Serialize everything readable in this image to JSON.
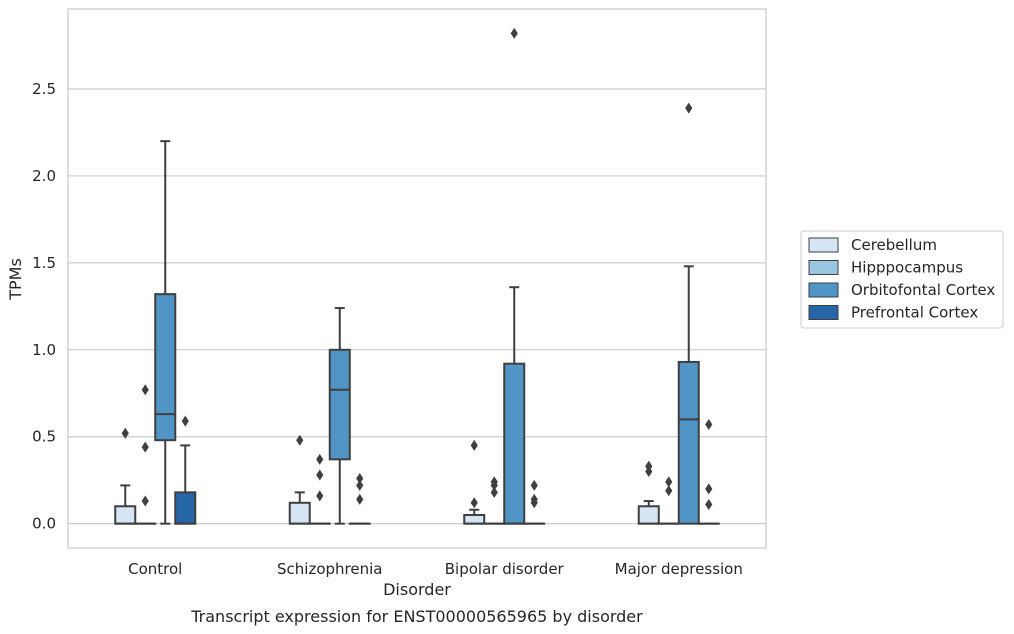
{
  "chart_data": {
    "type": "box",
    "caption": "Transcript expression for ENST00000565965 by disorder",
    "xlabel": "Disorder",
    "ylabel": "TPMs",
    "ylim": [
      -0.14,
      2.96
    ],
    "yticks": [
      "0.0",
      "0.5",
      "1.0",
      "1.5",
      "2.0",
      "2.5"
    ],
    "grid": "horizontal",
    "legend_position": "right",
    "categories": [
      "Control",
      "Schizophrenia",
      "Bipolar disorder",
      "Major depression"
    ],
    "series": [
      {
        "name": "Cerebellum",
        "color": "#d6e5f3",
        "boxes": [
          {
            "q1": 0.0,
            "median": 0.0,
            "q3": 0.1,
            "whisker_low": 0.0,
            "whisker_high": 0.22,
            "outliers": [
              0.52
            ]
          },
          {
            "q1": 0.0,
            "median": 0.0,
            "q3": 0.12,
            "whisker_low": 0.0,
            "whisker_high": 0.18,
            "outliers": [
              0.48
            ]
          },
          {
            "q1": 0.0,
            "median": 0.0,
            "q3": 0.05,
            "whisker_low": 0.0,
            "whisker_high": 0.08,
            "outliers": [
              0.12,
              0.45
            ]
          },
          {
            "q1": 0.0,
            "median": 0.0,
            "q3": 0.1,
            "whisker_low": 0.0,
            "whisker_high": 0.13,
            "outliers": [
              0.3,
              0.33
            ]
          }
        ]
      },
      {
        "name": "Hipppocampus",
        "color": "#9ac5e1",
        "boxes": [
          {
            "q1": 0.0,
            "median": 0.0,
            "q3": 0.0,
            "whisker_low": 0.0,
            "whisker_high": 0.0,
            "outliers": [
              0.13,
              0.44,
              0.77
            ]
          },
          {
            "q1": 0.0,
            "median": 0.0,
            "q3": 0.0,
            "whisker_low": 0.0,
            "whisker_high": 0.0,
            "outliers": [
              0.16,
              0.28,
              0.37
            ]
          },
          {
            "q1": 0.0,
            "median": 0.0,
            "q3": 0.0,
            "whisker_low": 0.0,
            "whisker_high": 0.0,
            "outliers": [
              0.18,
              0.22,
              0.24
            ]
          },
          {
            "q1": 0.0,
            "median": 0.0,
            "q3": 0.0,
            "whisker_low": 0.0,
            "whisker_high": 0.0,
            "outliers": [
              0.19,
              0.24
            ]
          }
        ]
      },
      {
        "name": "Orbitofontal Cortex",
        "color": "#5095c5",
        "boxes": [
          {
            "q1": 0.48,
            "median": 0.63,
            "q3": 1.32,
            "whisker_low": 0.0,
            "whisker_high": 2.2,
            "outliers": []
          },
          {
            "q1": 0.37,
            "median": 0.77,
            "q3": 1.0,
            "whisker_low": 0.0,
            "whisker_high": 1.24,
            "outliers": []
          },
          {
            "q1": 0.0,
            "median": 0.0,
            "q3": 0.92,
            "whisker_low": 0.0,
            "whisker_high": 1.36,
            "outliers": [
              2.82
            ]
          },
          {
            "q1": 0.0,
            "median": 0.6,
            "q3": 0.93,
            "whisker_low": 0.0,
            "whisker_high": 1.48,
            "outliers": [
              2.39
            ]
          }
        ]
      },
      {
        "name": "Prefrontal Cortex",
        "color": "#2666a6",
        "boxes": [
          {
            "q1": 0.0,
            "median": 0.0,
            "q3": 0.18,
            "whisker_low": 0.0,
            "whisker_high": 0.45,
            "outliers": [
              0.59
            ]
          },
          {
            "q1": 0.0,
            "median": 0.0,
            "q3": 0.0,
            "whisker_low": 0.0,
            "whisker_high": 0.0,
            "outliers": [
              0.14,
              0.22,
              0.26
            ]
          },
          {
            "q1": 0.0,
            "median": 0.0,
            "q3": 0.0,
            "whisker_low": 0.0,
            "whisker_high": 0.0,
            "outliers": [
              0.12,
              0.14,
              0.22
            ]
          },
          {
            "q1": 0.0,
            "median": 0.0,
            "q3": 0.0,
            "whisker_low": 0.0,
            "whisker_high": 0.0,
            "outliers": [
              0.11,
              0.2,
              0.57
            ]
          }
        ]
      }
    ]
  }
}
